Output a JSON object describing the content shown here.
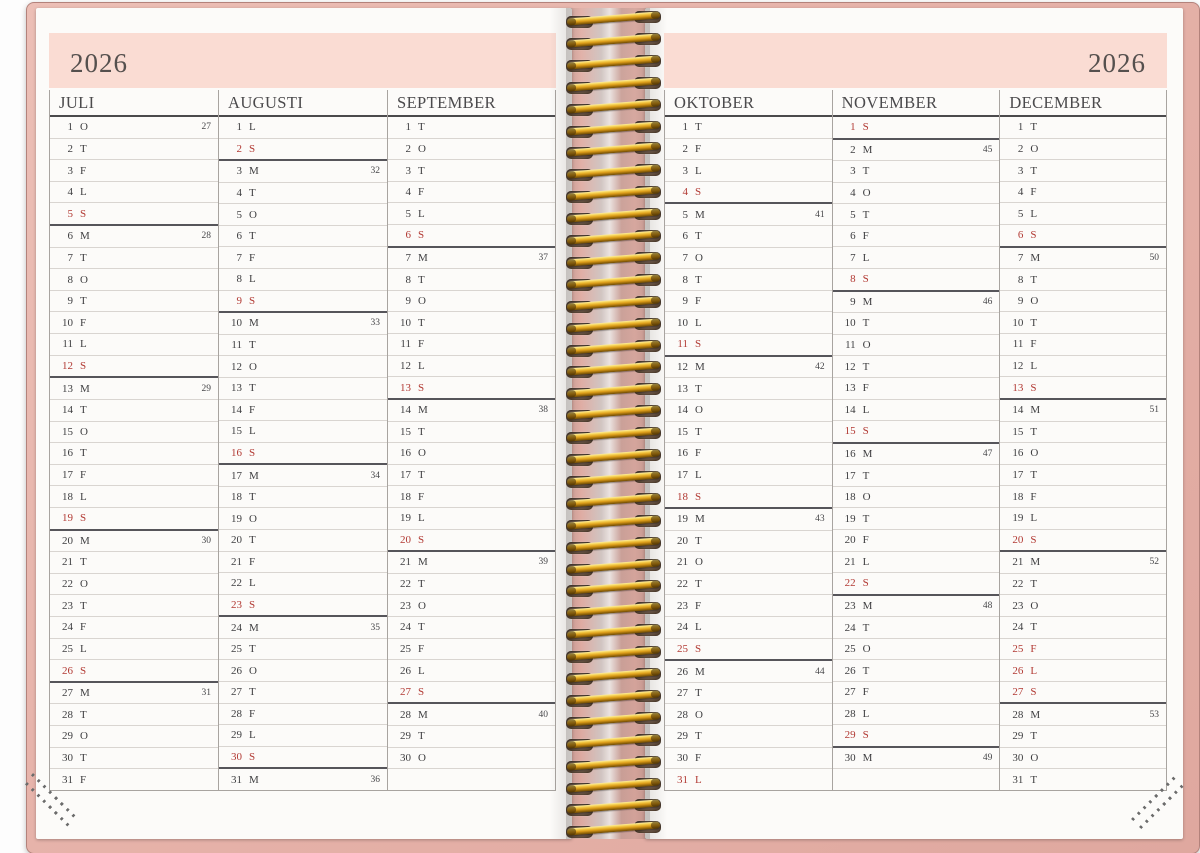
{
  "colors": {
    "accent_red": "#b23a34",
    "band_pink": "#fadcd3",
    "cover_pink": "#e6b2a9",
    "wire_gold": "#d99a18"
  },
  "pages": [
    {
      "side": "left",
      "year": "2026",
      "months": [
        {
          "name": "JULI",
          "days": [
            [
              1,
              "O",
              27
            ],
            [
              2,
              "T"
            ],
            [
              3,
              "F"
            ],
            [
              4,
              "L"
            ],
            [
              5,
              "S",
              null,
              1
            ],
            [
              6,
              "M",
              28
            ],
            [
              7,
              "T"
            ],
            [
              8,
              "O"
            ],
            [
              9,
              "T"
            ],
            [
              10,
              "F"
            ],
            [
              11,
              "L"
            ],
            [
              12,
              "S",
              null,
              1
            ],
            [
              13,
              "M",
              29
            ],
            [
              14,
              "T"
            ],
            [
              15,
              "O"
            ],
            [
              16,
              "T"
            ],
            [
              17,
              "F"
            ],
            [
              18,
              "L"
            ],
            [
              19,
              "S",
              null,
              1
            ],
            [
              20,
              "M",
              30
            ],
            [
              21,
              "T"
            ],
            [
              22,
              "O"
            ],
            [
              23,
              "T"
            ],
            [
              24,
              "F"
            ],
            [
              25,
              "L"
            ],
            [
              26,
              "S",
              null,
              1
            ],
            [
              27,
              "M",
              31
            ],
            [
              28,
              "T"
            ],
            [
              29,
              "O"
            ],
            [
              30,
              "T"
            ],
            [
              31,
              "F"
            ]
          ]
        },
        {
          "name": "AUGUSTI",
          "days": [
            [
              1,
              "L"
            ],
            [
              2,
              "S",
              null,
              1
            ],
            [
              3,
              "M",
              32
            ],
            [
              4,
              "T"
            ],
            [
              5,
              "O"
            ],
            [
              6,
              "T"
            ],
            [
              7,
              "F"
            ],
            [
              8,
              "L"
            ],
            [
              9,
              "S",
              null,
              1
            ],
            [
              10,
              "M",
              33
            ],
            [
              11,
              "T"
            ],
            [
              12,
              "O"
            ],
            [
              13,
              "T"
            ],
            [
              14,
              "F"
            ],
            [
              15,
              "L"
            ],
            [
              16,
              "S",
              null,
              1
            ],
            [
              17,
              "M",
              34
            ],
            [
              18,
              "T"
            ],
            [
              19,
              "O"
            ],
            [
              20,
              "T"
            ],
            [
              21,
              "F"
            ],
            [
              22,
              "L"
            ],
            [
              23,
              "S",
              null,
              1
            ],
            [
              24,
              "M",
              35
            ],
            [
              25,
              "T"
            ],
            [
              26,
              "O"
            ],
            [
              27,
              "T"
            ],
            [
              28,
              "F"
            ],
            [
              29,
              "L"
            ],
            [
              30,
              "S",
              null,
              1
            ],
            [
              31,
              "M",
              36
            ]
          ]
        },
        {
          "name": "SEPTEMBER",
          "days": [
            [
              1,
              "T"
            ],
            [
              2,
              "O"
            ],
            [
              3,
              "T"
            ],
            [
              4,
              "F"
            ],
            [
              5,
              "L"
            ],
            [
              6,
              "S",
              null,
              1
            ],
            [
              7,
              "M",
              37
            ],
            [
              8,
              "T"
            ],
            [
              9,
              "O"
            ],
            [
              10,
              "T"
            ],
            [
              11,
              "F"
            ],
            [
              12,
              "L"
            ],
            [
              13,
              "S",
              null,
              1
            ],
            [
              14,
              "M",
              38
            ],
            [
              15,
              "T"
            ],
            [
              16,
              "O"
            ],
            [
              17,
              "T"
            ],
            [
              18,
              "F"
            ],
            [
              19,
              "L"
            ],
            [
              20,
              "S",
              null,
              1
            ],
            [
              21,
              "M",
              39
            ],
            [
              22,
              "T"
            ],
            [
              23,
              "O"
            ],
            [
              24,
              "T"
            ],
            [
              25,
              "F"
            ],
            [
              26,
              "L"
            ],
            [
              27,
              "S",
              null,
              1
            ],
            [
              28,
              "M",
              40
            ],
            [
              29,
              "T"
            ],
            [
              30,
              "O"
            ]
          ]
        }
      ]
    },
    {
      "side": "right",
      "year": "2026",
      "months": [
        {
          "name": "OKTOBER",
          "days": [
            [
              1,
              "T"
            ],
            [
              2,
              "F"
            ],
            [
              3,
              "L"
            ],
            [
              4,
              "S",
              null,
              1
            ],
            [
              5,
              "M",
              41
            ],
            [
              6,
              "T"
            ],
            [
              7,
              "O"
            ],
            [
              8,
              "T"
            ],
            [
              9,
              "F"
            ],
            [
              10,
              "L"
            ],
            [
              11,
              "S",
              null,
              1
            ],
            [
              12,
              "M",
              42
            ],
            [
              13,
              "T"
            ],
            [
              14,
              "O"
            ],
            [
              15,
              "T"
            ],
            [
              16,
              "F"
            ],
            [
              17,
              "L"
            ],
            [
              18,
              "S",
              null,
              1
            ],
            [
              19,
              "M",
              43
            ],
            [
              20,
              "T"
            ],
            [
              21,
              "O"
            ],
            [
              22,
              "T"
            ],
            [
              23,
              "F"
            ],
            [
              24,
              "L"
            ],
            [
              25,
              "S",
              null,
              1
            ],
            [
              26,
              "M",
              44
            ],
            [
              27,
              "T"
            ],
            [
              28,
              "O"
            ],
            [
              29,
              "T"
            ],
            [
              30,
              "F"
            ],
            [
              31,
              "L",
              null,
              1
            ]
          ]
        },
        {
          "name": "NOVEMBER",
          "days": [
            [
              1,
              "S",
              null,
              1
            ],
            [
              2,
              "M",
              45
            ],
            [
              3,
              "T"
            ],
            [
              4,
              "O"
            ],
            [
              5,
              "T"
            ],
            [
              6,
              "F"
            ],
            [
              7,
              "L"
            ],
            [
              8,
              "S",
              null,
              1
            ],
            [
              9,
              "M",
              46
            ],
            [
              10,
              "T"
            ],
            [
              11,
              "O"
            ],
            [
              12,
              "T"
            ],
            [
              13,
              "F"
            ],
            [
              14,
              "L"
            ],
            [
              15,
              "S",
              null,
              1
            ],
            [
              16,
              "M",
              47
            ],
            [
              17,
              "T"
            ],
            [
              18,
              "O"
            ],
            [
              19,
              "T"
            ],
            [
              20,
              "F"
            ],
            [
              21,
              "L"
            ],
            [
              22,
              "S",
              null,
              1
            ],
            [
              23,
              "M",
              48
            ],
            [
              24,
              "T"
            ],
            [
              25,
              "O"
            ],
            [
              26,
              "T"
            ],
            [
              27,
              "F"
            ],
            [
              28,
              "L"
            ],
            [
              29,
              "S",
              null,
              1
            ],
            [
              30,
              "M",
              49
            ]
          ]
        },
        {
          "name": "DECEMBER",
          "days": [
            [
              1,
              "T"
            ],
            [
              2,
              "O"
            ],
            [
              3,
              "T"
            ],
            [
              4,
              "F"
            ],
            [
              5,
              "L"
            ],
            [
              6,
              "S",
              null,
              1
            ],
            [
              7,
              "M",
              50
            ],
            [
              8,
              "T"
            ],
            [
              9,
              "O"
            ],
            [
              10,
              "T"
            ],
            [
              11,
              "F"
            ],
            [
              12,
              "L"
            ],
            [
              13,
              "S",
              null,
              1
            ],
            [
              14,
              "M",
              51
            ],
            [
              15,
              "T"
            ],
            [
              16,
              "O"
            ],
            [
              17,
              "T"
            ],
            [
              18,
              "F"
            ],
            [
              19,
              "L"
            ],
            [
              20,
              "S",
              null,
              1
            ],
            [
              21,
              "M",
              52
            ],
            [
              22,
              "T"
            ],
            [
              23,
              "O"
            ],
            [
              24,
              "T"
            ],
            [
              25,
              "F",
              null,
              1
            ],
            [
              26,
              "L",
              null,
              1
            ],
            [
              27,
              "S",
              null,
              1
            ],
            [
              28,
              "M",
              53
            ],
            [
              29,
              "T"
            ],
            [
              30,
              "O"
            ],
            [
              31,
              "T"
            ]
          ]
        }
      ]
    }
  ]
}
